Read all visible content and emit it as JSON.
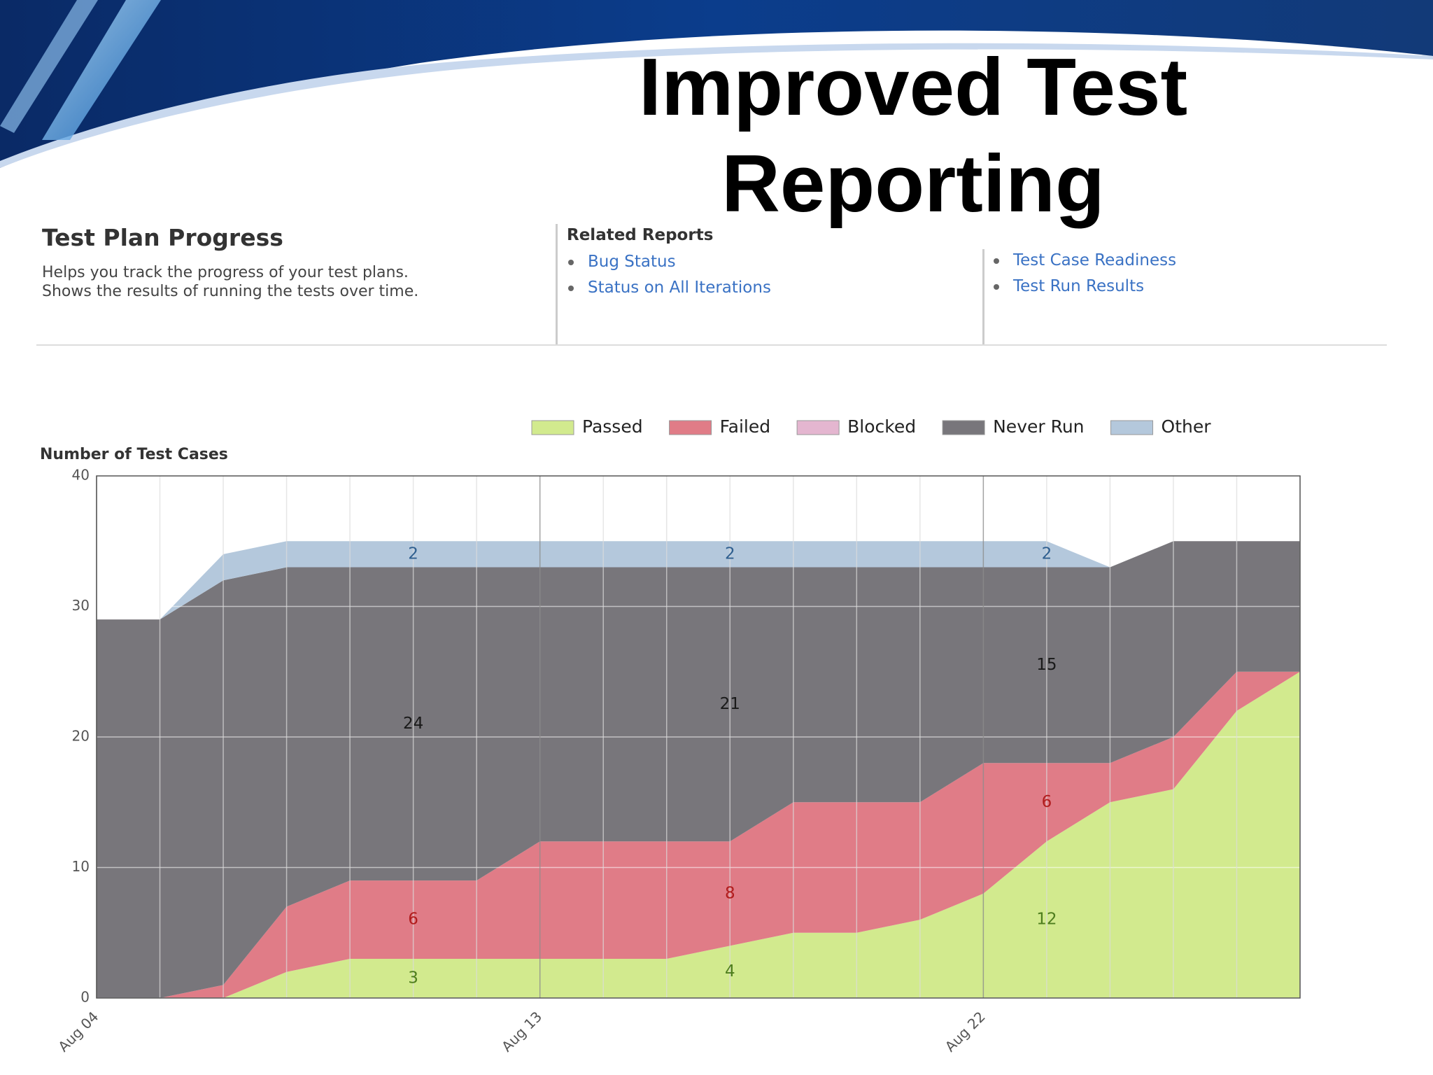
{
  "title": [
    "Improved Test",
    "Reporting"
  ],
  "panel": {
    "heading": "Test Plan Progress",
    "description": [
      "Helps you track the progress of your test plans.",
      "Shows the results of running the tests over time."
    ],
    "related_heading": "Related Reports",
    "links_left": [
      "Bug Status",
      "Status on All Iterations"
    ],
    "links_right": [
      "Test Case Readiness",
      "Test Run Results"
    ]
  },
  "chart_data": {
    "type": "area",
    "stacked": true,
    "ylabel": "Number of Test Cases",
    "categories": [
      "Aug 04",
      null,
      null,
      null,
      null,
      null,
      null,
      "Aug 13",
      null,
      null,
      null,
      null,
      null,
      null,
      "Aug 22",
      null,
      null,
      null,
      null,
      null
    ],
    "series": [
      {
        "name": "Passed",
        "color": "#d2ea8e",
        "label_color": "#4e7d1e",
        "values": [
          0,
          0,
          0,
          2,
          3,
          3,
          3,
          3,
          3,
          3,
          4,
          5,
          5,
          6,
          8,
          12,
          15,
          16,
          22,
          25
        ]
      },
      {
        "name": "Failed",
        "color": "#e07c87",
        "label_color": "#b01c1c",
        "values": [
          0,
          0,
          1,
          5,
          6,
          6,
          6,
          9,
          9,
          9,
          8,
          10,
          10,
          9,
          10,
          6,
          3,
          4,
          3,
          0
        ]
      },
      {
        "name": "Blocked",
        "color": "#e4b6d0",
        "label_color": "#8a3a6a",
        "values": [
          0,
          0,
          0,
          0,
          0,
          0,
          0,
          0,
          0,
          0,
          0,
          0,
          0,
          0,
          0,
          0,
          0,
          0,
          0,
          0
        ]
      },
      {
        "name": "Never Run",
        "color": "#78767b",
        "label_color": "#1a1a1a",
        "values": [
          29,
          29,
          31,
          26,
          24,
          24,
          24,
          21,
          21,
          21,
          21,
          18,
          18,
          18,
          15,
          15,
          15,
          15,
          10,
          10
        ]
      },
      {
        "name": "Other",
        "color": "#b4c8dc",
        "label_color": "#2f5f8f",
        "values": [
          0,
          0,
          2,
          2,
          2,
          2,
          2,
          2,
          2,
          2,
          2,
          2,
          2,
          2,
          2,
          2,
          0,
          0,
          0,
          0
        ]
      }
    ],
    "data_label_indices": [
      5,
      10,
      15
    ],
    "ylim": [
      0,
      40
    ],
    "yticks": [
      0,
      10,
      20,
      30,
      40
    ],
    "grid": true,
    "legend": "top"
  }
}
